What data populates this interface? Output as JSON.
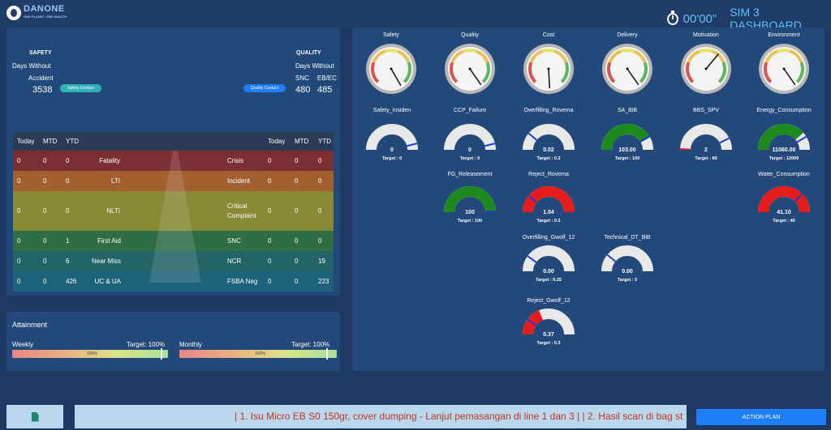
{
  "brand": {
    "name": "DANONE",
    "tagline": "ONE PLANET. ONE HEALTH"
  },
  "header": {
    "timer": "00'00\"",
    "title": "SIM 3 DASHBOARD"
  },
  "safety": {
    "heading": "SAFETY",
    "label_line1": "Days Without",
    "label_line2": "Accident",
    "value": "3538",
    "button": "Safety Contact"
  },
  "quality": {
    "heading": "QUALITY",
    "label": "Days Without",
    "col1_label": "SNC",
    "col2_label": "EB/EC",
    "col1_value": "480",
    "col2_value": "485",
    "button": "Quality Contact"
  },
  "matrix": {
    "headers": {
      "today": "Today",
      "mtd": "MTD",
      "ytd": "YTD"
    },
    "rows": [
      {
        "l_today": "0",
        "l_mtd": "0",
        "l_ytd": "0",
        "l_label": "Fatality",
        "r_label": "Crisis",
        "r_today": "0",
        "r_mtd": "0",
        "r_ytd": "0",
        "color": "#7c2f33"
      },
      {
        "l_today": "0",
        "l_mtd": "0",
        "l_ytd": "0",
        "l_label": "LTI",
        "r_label": "Incident",
        "r_today": "0",
        "r_mtd": "0",
        "r_ytd": "0",
        "color": "#a2602f"
      },
      {
        "l_today": "0",
        "l_mtd": "0",
        "l_ytd": "0",
        "l_label": "NLTI",
        "r_label": "Critical Complaint",
        "r_label_1": "Critical",
        "r_label_2": "Complaint",
        "r_today": "0",
        "r_mtd": "0",
        "r_ytd": "0",
        "color": "#868a34"
      },
      {
        "l_today": "0",
        "l_mtd": "0",
        "l_ytd": "1",
        "l_label": "First Aid",
        "r_label": "SNC",
        "r_today": "0",
        "r_mtd": "0",
        "r_ytd": "0",
        "color": "#2f6d45"
      },
      {
        "l_today": "0",
        "l_mtd": "0",
        "l_ytd": "6",
        "l_label": "Near Miss",
        "r_label": "NCR",
        "r_today": "0",
        "r_mtd": "0",
        "r_ytd": "19",
        "color": "#236466"
      },
      {
        "l_today": "0",
        "l_mtd": "0",
        "l_ytd": "426",
        "l_label": "UC & UA",
        "r_label": "FSBA Neg",
        "r_today": "0",
        "r_mtd": "0",
        "r_ytd": "223",
        "color": "#1e6279"
      }
    ]
  },
  "attainment": {
    "title": "Attainment",
    "weekly": {
      "label": "Weekly",
      "target": "Target: 100%",
      "value_text": "100%",
      "value": 100
    },
    "monthly": {
      "label": "Monthly",
      "target": "Target: 100%",
      "value_text": "102%",
      "value": 102
    }
  },
  "dials": [
    {
      "title": "Safety",
      "needle_deg": -30
    },
    {
      "title": "Quality",
      "needle_deg": -35
    },
    {
      "title": "Cost",
      "needle_deg": -3
    },
    {
      "title": "Delivery",
      "needle_deg": -35
    },
    {
      "title": "Motivation",
      "needle_deg": 40
    },
    {
      "title": "Environment",
      "needle_deg": -35
    }
  ],
  "kpis": [
    {
      "title": "Safety_Insiden",
      "value": "0",
      "target": "Target : 0",
      "fill": 0,
      "fill_color": "#1e8a1e",
      "track": "#e8e8e8",
      "marker": 0.92
    },
    {
      "title": "CCP_Failure",
      "value": "0",
      "target": "Target : 0",
      "fill": 0,
      "fill_color": "#1e8a1e",
      "track": "#e8e8e8",
      "marker": 0.92
    },
    {
      "title": "Overfilling_Rovema",
      "value": "0.02",
      "target": "Target : 0.3",
      "fill": 0,
      "fill_color": "#1e8a1e",
      "track": "#e8e8e8",
      "marker": 0.22
    },
    {
      "title": "SA_BiB",
      "value": "103.00",
      "target": "Target : 100",
      "fill": 0.84,
      "fill_color": "#1e8a1e",
      "track": "#e8e8e8",
      "marker": 0.82
    },
    {
      "title": "BBS_SPV",
      "value": "2",
      "target": "Target : 80",
      "fill": 0.02,
      "fill_color": "#e51c1c",
      "track": "#e8e8e8",
      "marker": 0.85
    },
    {
      "title": "Energy_Consumption",
      "value": "11060.00",
      "target": "Target : 12000",
      "fill": 0.77,
      "fill_color": "#1e8a1e",
      "track": "#e8e8e8",
      "marker": 0.83
    },
    {
      "title": "FG_Releasement",
      "value": "100",
      "target": "Target : 100",
      "fill": 1,
      "fill_color": "#1e8a1e",
      "track": "#e8e8e8",
      "marker": 0.99
    },
    {
      "title": "Reject_Rovema",
      "value": "1.04",
      "target": "Target : 0.3",
      "fill": 1,
      "fill_color": "#e51c1c",
      "track": "#e8e8e8",
      "marker": 0.22
    },
    {
      "title": "Water_Consumption",
      "value": "41.10",
      "target": "Target : 40",
      "fill": 1,
      "fill_color": "#e51c1c",
      "track": "#e8e8e8",
      "marker": 0.75
    },
    {
      "title": "Overfilling_Gwolf_12",
      "value": "0.00",
      "target": "Target : 0.25",
      "fill": 0,
      "fill_color": "#1e8a1e",
      "track": "#e8e8e8",
      "marker": 0.2
    },
    {
      "title": "Technical_DT_BiB",
      "value": "0.00",
      "target": "Target : 5",
      "fill": 0,
      "fill_color": "#1e8a1e",
      "track": "#e8e8e8",
      "marker": 0.22
    },
    {
      "title": "Reject_Gwolf_12",
      "value": "0.37",
      "target": "Target : 0.3",
      "fill": 0.38,
      "fill_color": "#e51c1c",
      "track": "#e8e8e8",
      "marker": 0.2
    }
  ],
  "footer": {
    "ticker": "| 1. Isu Micro EB S0 150gr, cover dumping - Lanjut pemasangan di line 1 dan 3 | | 2. Hasil scan di bag st",
    "action_button": "ACTION PLAN"
  }
}
